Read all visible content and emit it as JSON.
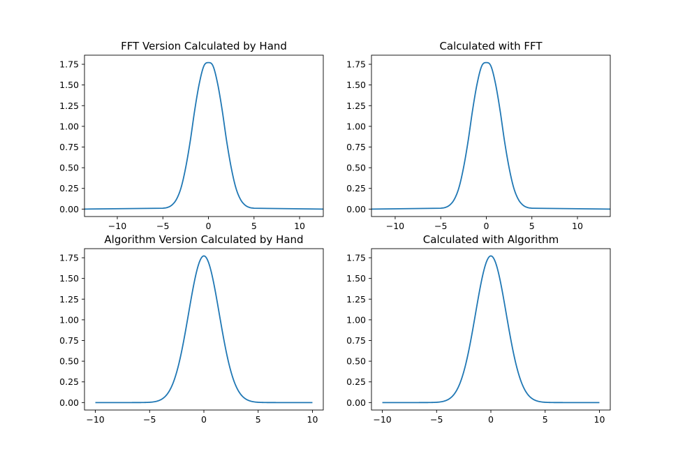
{
  "chart_data": [
    {
      "type": "line",
      "title": "FFT Version Calculated by Hand",
      "xlabel": "",
      "ylabel": "",
      "xlim": [
        -13.6,
        12.6
      ],
      "ylim": [
        -0.09,
        1.86
      ],
      "xticks": [
        -10,
        -5,
        0,
        5,
        10
      ],
      "xtick_labels": [
        "−10",
        "−5",
        "0",
        "5",
        "10"
      ],
      "yticks": [
        0,
        0.25,
        0.5,
        0.75,
        1,
        1.25,
        1.5,
        1.75
      ],
      "ytick_labels": [
        "0.00",
        "0.25",
        "0.50",
        "0.75",
        "1.00",
        "1.25",
        "1.50",
        "1.75"
      ],
      "grid": false,
      "series": [
        {
          "color": "#1f77b4",
          "x": [
            -13.6,
            -5,
            -4.5,
            -4,
            -3.5,
            -3,
            -2.5,
            -2,
            -1.5,
            -1,
            -0.5,
            0,
            0.5,
            1,
            1.5,
            2,
            2.5,
            3,
            3.5,
            4,
            4.5,
            5,
            12.6
          ],
          "y": [
            0,
            0.01,
            0.02,
            0.05,
            0.12,
            0.26,
            0.5,
            0.82,
            1.2,
            1.52,
            1.73,
            1.77,
            1.73,
            1.52,
            1.2,
            0.82,
            0.5,
            0.26,
            0.12,
            0.05,
            0.02,
            0.01,
            0
          ]
        }
      ]
    },
    {
      "type": "line",
      "title": "Calculated with FFT",
      "xlabel": "",
      "ylabel": "",
      "xlim": [
        -12.6,
        13.6
      ],
      "ylim": [
        -0.09,
        1.86
      ],
      "xticks": [
        -10,
        -5,
        0,
        5,
        10
      ],
      "xtick_labels": [
        "−10",
        "−5",
        "0",
        "5",
        "10"
      ],
      "yticks": [
        0,
        0.25,
        0.5,
        0.75,
        1,
        1.25,
        1.5,
        1.75
      ],
      "ytick_labels": [
        "0.00",
        "0.25",
        "0.50",
        "0.75",
        "1.00",
        "1.25",
        "1.50",
        "1.75"
      ],
      "grid": false,
      "series": [
        {
          "color": "#1f77b4",
          "x": [
            -12.6,
            -5,
            -4.5,
            -4,
            -3.5,
            -3,
            -2.5,
            -2,
            -1.5,
            -1,
            -0.5,
            0,
            0.5,
            1,
            1.5,
            2,
            2.5,
            3,
            3.5,
            4,
            4.5,
            5,
            13.6
          ],
          "y": [
            0,
            0.01,
            0.02,
            0.05,
            0.12,
            0.26,
            0.5,
            0.82,
            1.2,
            1.52,
            1.73,
            1.77,
            1.73,
            1.52,
            1.2,
            0.82,
            0.5,
            0.26,
            0.12,
            0.05,
            0.02,
            0.01,
            0
          ]
        }
      ]
    },
    {
      "type": "line",
      "title": "Algorithm Version Calculated by Hand",
      "xlabel": "",
      "ylabel": "",
      "xlim": [
        -11,
        11
      ],
      "ylim": [
        -0.09,
        1.86
      ],
      "xticks": [
        -10,
        -5,
        0,
        5,
        10
      ],
      "xtick_labels": [
        "−10",
        "−5",
        "0",
        "5",
        "10"
      ],
      "yticks": [
        0,
        0.25,
        0.5,
        0.75,
        1,
        1.25,
        1.5,
        1.75
      ],
      "ytick_labels": [
        "0.00",
        "0.25",
        "0.50",
        "0.75",
        "1.00",
        "1.25",
        "1.50",
        "1.75"
      ],
      "grid": false,
      "series": [
        {
          "color": "#1f77b4",
          "gaussian": {
            "amplitude": 1.7725,
            "sigma": 1.414,
            "x_range": [
              -10,
              10
            ]
          }
        }
      ]
    },
    {
      "type": "line",
      "title": "Calculated with Algorithm",
      "xlabel": "",
      "ylabel": "",
      "xlim": [
        -11,
        11
      ],
      "ylim": [
        -0.09,
        1.86
      ],
      "xticks": [
        -10,
        -5,
        0,
        5,
        10
      ],
      "xtick_labels": [
        "−10",
        "−5",
        "0",
        "5",
        "10"
      ],
      "yticks": [
        0,
        0.25,
        0.5,
        0.75,
        1,
        1.25,
        1.5,
        1.75
      ],
      "ytick_labels": [
        "0.00",
        "0.25",
        "0.50",
        "0.75",
        "1.00",
        "1.25",
        "1.50",
        "1.75"
      ],
      "grid": false,
      "series": [
        {
          "color": "#1f77b4",
          "gaussian": {
            "amplitude": 1.7725,
            "sigma": 1.414,
            "x_range": [
              -10,
              10
            ]
          }
        }
      ]
    }
  ]
}
